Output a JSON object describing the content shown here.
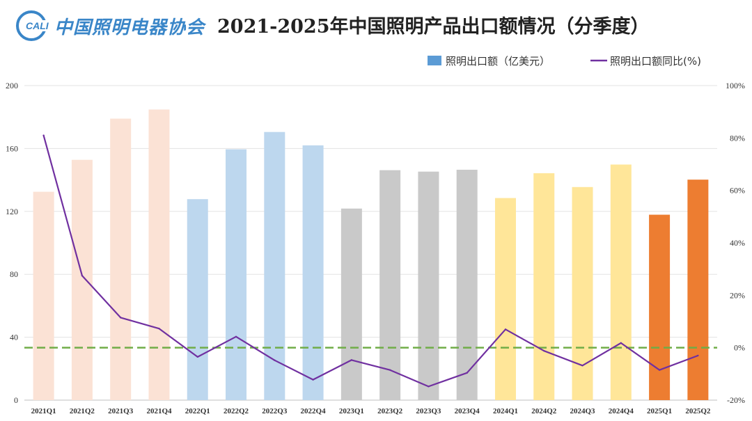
{
  "logo": {
    "mark_text": "CALI",
    "org_name": "中国照明电器协会",
    "mark_color": "#3a86c8"
  },
  "chart_data": {
    "type": "bar+line",
    "title": "2021-2025年中国照明产品出口额情况（分季度）",
    "categories": [
      "2021Q1",
      "2021Q2",
      "2021Q3",
      "2021Q4",
      "2022Q1",
      "2022Q2",
      "2022Q3",
      "2022Q4",
      "2023Q1",
      "2023Q2",
      "2023Q3",
      "2023Q4",
      "2024Q1",
      "2024Q2",
      "2024Q3",
      "2024Q4",
      "2025Q1",
      "2025Q2"
    ],
    "series": [
      {
        "name": "照明出口额（亿美元）",
        "kind": "bar",
        "axis": "left",
        "legend_color": "#5b9bd5",
        "values": [
          132.5,
          152.8,
          179.0,
          184.8,
          127.8,
          159.5,
          170.5,
          162.0,
          121.8,
          146.2,
          145.3,
          146.5,
          128.5,
          144.3,
          135.5,
          149.8,
          117.9,
          140.2
        ],
        "colors": [
          "#fbe2d5",
          "#fbe2d5",
          "#fbe2d5",
          "#fbe2d5",
          "#bdd7ee",
          "#bdd7ee",
          "#bdd7ee",
          "#bdd7ee",
          "#c9c9c9",
          "#c9c9c9",
          "#c9c9c9",
          "#c9c9c9",
          "#ffe699",
          "#ffe699",
          "#ffe699",
          "#ffe699",
          "#ed7d31",
          "#ed7d31"
        ]
      },
      {
        "name": "照明出口额同比(%)",
        "kind": "line",
        "axis": "right",
        "color": "#7030a0",
        "values": [
          81.0,
          27.5,
          11.5,
          7.3,
          -3.5,
          4.2,
          -4.8,
          -12.2,
          -4.7,
          -8.5,
          -14.8,
          -9.6,
          7.0,
          -1.2,
          -6.8,
          1.8,
          -8.5,
          -3.0
        ]
      }
    ],
    "reference_line": {
      "axis": "right",
      "value": 0,
      "color": "#70ad47",
      "style": "dashed"
    },
    "y_left": {
      "min": 0,
      "max": 200,
      "ticks": [
        "0",
        "40",
        "80",
        "120",
        "160",
        "200"
      ]
    },
    "y_right": {
      "min": -20,
      "max": 100,
      "ticks": [
        "-20%",
        "0%",
        "20%",
        "40%",
        "60%",
        "80%",
        "100%"
      ]
    },
    "legend_position": "top-right",
    "grid": true
  }
}
